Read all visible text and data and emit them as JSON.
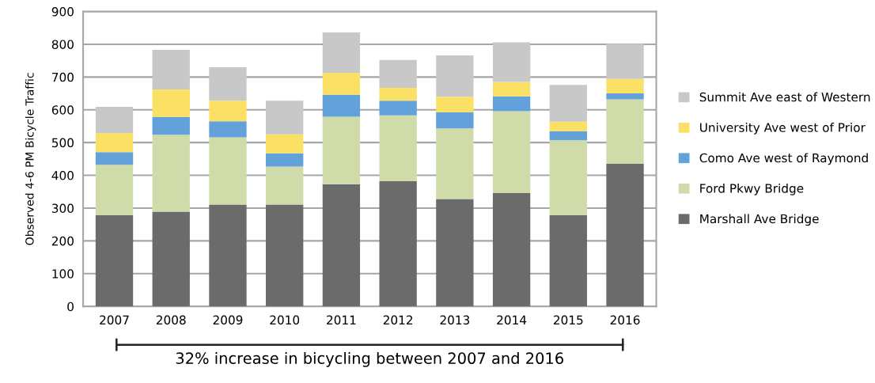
{
  "chart_data": {
    "type": "bar",
    "stacked": true,
    "ylabel": "Observed 4-6 PM Bicycle Traffic",
    "categories": [
      "2007",
      "2008",
      "2009",
      "2010",
      "2011",
      "2012",
      "2013",
      "2014",
      "2015",
      "2016"
    ],
    "series": [
      {
        "name": "Marshall Ave Bridge",
        "color": "#6b6b6b",
        "values": [
          279,
          289,
          311,
          311,
          373,
          382,
          328,
          346,
          279,
          436
        ]
      },
      {
        "name": "Ford Pkwy Bridge",
        "color": "#cfdcaa",
        "values": [
          153,
          235,
          205,
          116,
          206,
          201,
          215,
          250,
          228,
          196
        ]
      },
      {
        "name": "Como Ave west of Raymond",
        "color": "#63a1db",
        "values": [
          39,
          54,
          49,
          40,
          67,
          45,
          49,
          45,
          28,
          18
        ]
      },
      {
        "name": "University Ave west of Prior",
        "color": "#fbe066",
        "values": [
          58,
          84,
          63,
          58,
          67,
          39,
          48,
          44,
          29,
          44
        ]
      },
      {
        "name": "Summit Ave east of Western",
        "color": "#c8c8c8",
        "values": [
          80,
          121,
          102,
          103,
          123,
          85,
          126,
          121,
          112,
          107
        ]
      }
    ],
    "ylim": [
      0,
      900
    ],
    "yticks": [
      0,
      100,
      200,
      300,
      400,
      500,
      600,
      700,
      800,
      900
    ],
    "grid": "y",
    "legend": "right",
    "annotations": [
      "32% increase in bicycling between 2007 and 2016"
    ]
  }
}
